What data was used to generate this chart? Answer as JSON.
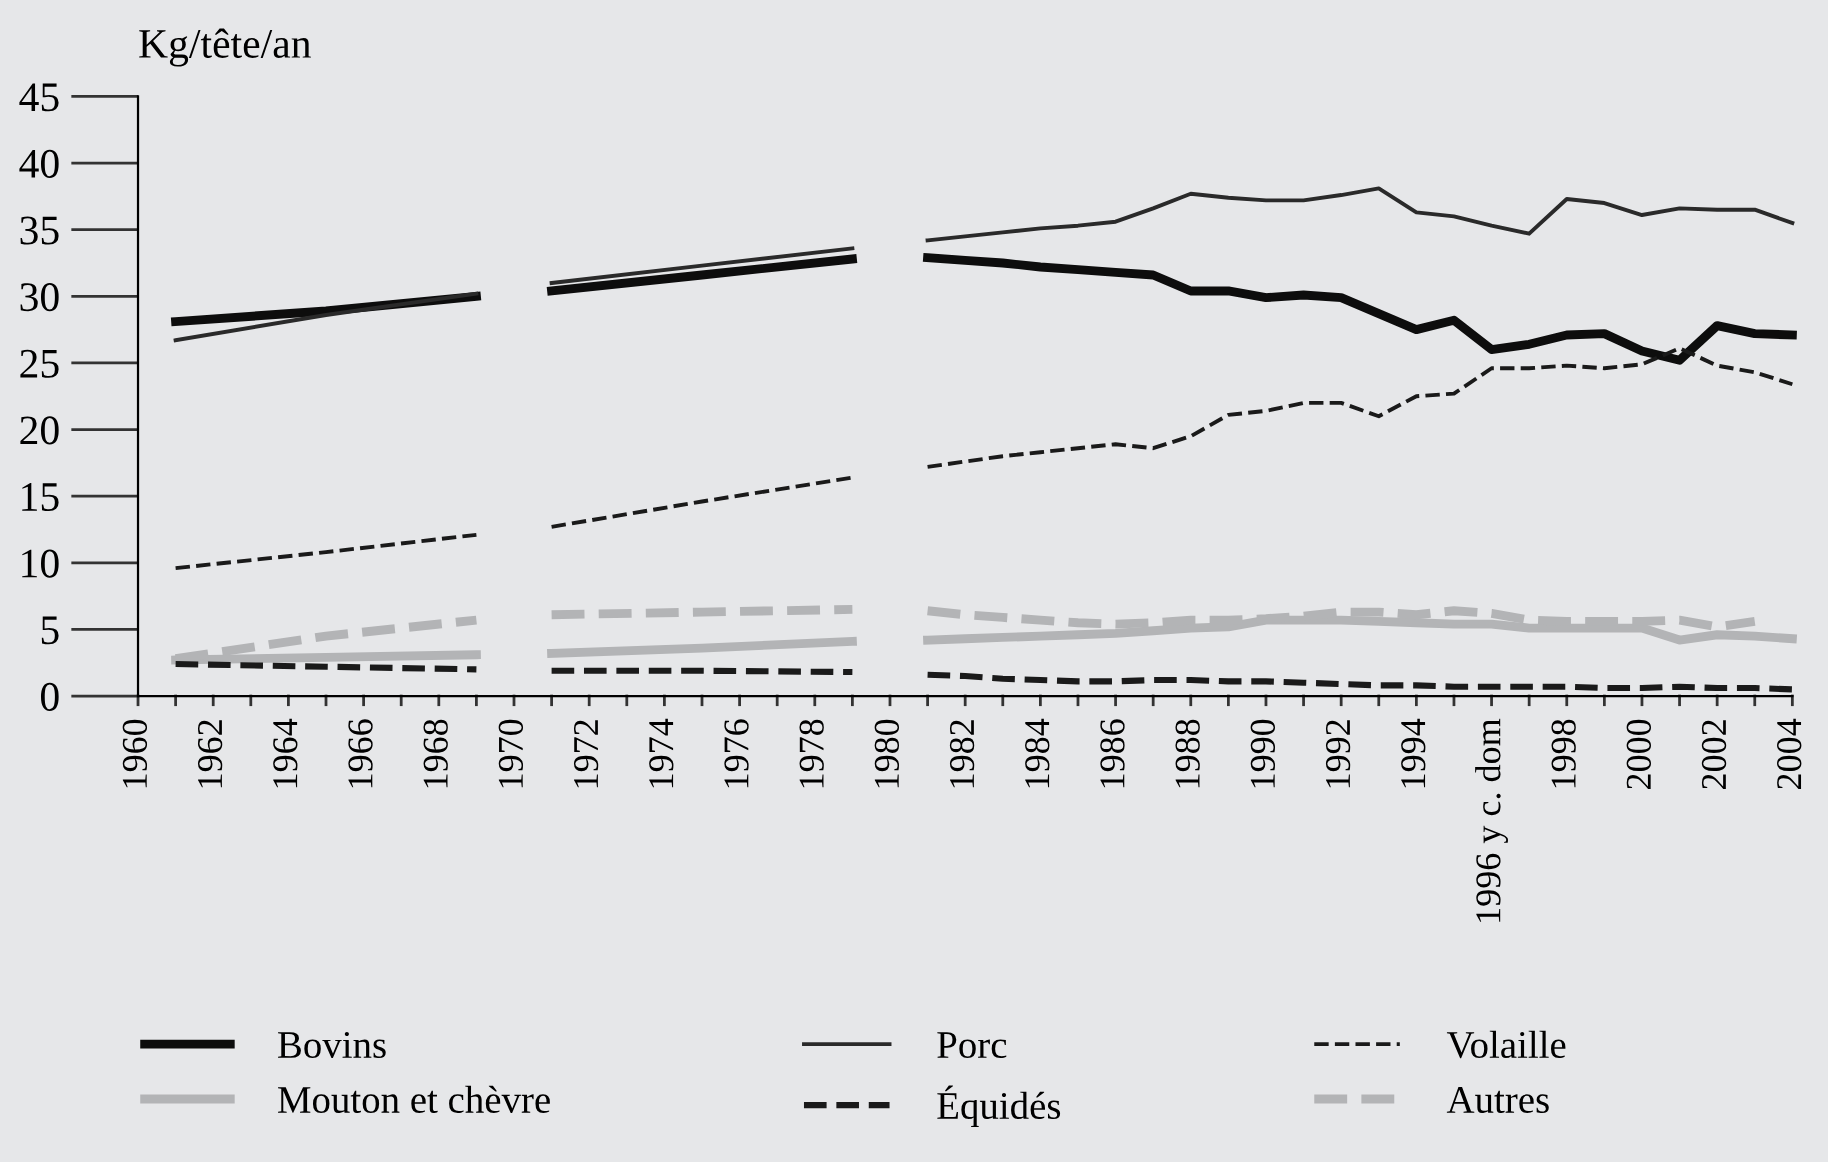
{
  "chart_data": {
    "type": "line",
    "ylabel": "Kg/tête/an",
    "xlim": [
      1960,
      2004
    ],
    "ylim": [
      0,
      45
    ],
    "yticks": [
      0,
      5,
      10,
      15,
      20,
      25,
      30,
      35,
      40,
      45
    ],
    "xticks": [
      1960,
      {
        "value": 1961,
        "label": null
      },
      1962,
      {
        "value": 1963,
        "label": null
      },
      1964,
      {
        "value": 1965,
        "label": null
      },
      1966,
      {
        "value": 1967,
        "label": null
      },
      1968,
      {
        "value": 1969,
        "label": null
      },
      1970,
      {
        "value": 1971,
        "label": null
      },
      1972,
      {
        "value": 1973,
        "label": null
      },
      1974,
      {
        "value": 1975,
        "label": null
      },
      1976,
      {
        "value": 1977,
        "label": null
      },
      1978,
      {
        "value": 1979,
        "label": null
      },
      1980,
      {
        "value": 1981,
        "label": null
      },
      1982,
      {
        "value": 1983,
        "label": null
      },
      1984,
      {
        "value": 1985,
        "label": null
      },
      1986,
      {
        "value": 1987,
        "label": null
      },
      1988,
      {
        "value": 1989,
        "label": null
      },
      1990,
      {
        "value": 1991,
        "label": null
      },
      1992,
      {
        "value": 1993,
        "label": null
      },
      1994,
      {
        "value": 1995,
        "label": null
      },
      {
        "value": 1996,
        "label": "1996 y c. dom"
      },
      {
        "value": 1997,
        "label": null
      },
      1998,
      {
        "value": 1999,
        "label": null
      },
      2000,
      {
        "value": 2001,
        "label": null
      },
      2002,
      {
        "value": 2003,
        "label": null
      },
      2004
    ],
    "x": [
      1961,
      1965,
      1969,
      1970,
      1971,
      1975,
      1979,
      1980,
      1981,
      1982,
      1983,
      1984,
      1985,
      1986,
      1987,
      1988,
      1989,
      1990,
      1991,
      1992,
      1993,
      1994,
      1995,
      1996,
      1997,
      1998,
      1999,
      2000,
      2001,
      2002,
      2003,
      2004
    ],
    "grid": false,
    "legend": "bottom",
    "marker": "none",
    "series": [
      {
        "name": "Bovins",
        "color": "#0d0d0d",
        "line_style": "solid",
        "values": [
          28.1,
          28.9,
          30.0,
          null,
          30.4,
          31.6,
          32.8,
          null,
          32.9,
          32.7,
          32.5,
          32.2,
          32.0,
          31.8,
          31.6,
          30.4,
          30.4,
          29.9,
          30.1,
          29.9,
          28.7,
          27.5,
          28.2,
          26.0,
          26.4,
          27.1,
          27.2,
          25.9,
          25.2,
          27.8,
          27.2,
          27.1
        ]
      },
      {
        "name": "Porc",
        "color": "#2a2a2a",
        "line_style": "solid",
        "values": [
          26.7,
          28.6,
          30.2,
          null,
          31.0,
          32.3,
          33.6,
          null,
          34.2,
          34.5,
          34.8,
          35.1,
          35.3,
          35.6,
          36.6,
          37.7,
          37.4,
          37.2,
          37.2,
          37.6,
          38.1,
          36.3,
          36.0,
          35.3,
          34.7,
          37.3,
          37.0,
          36.1,
          36.6,
          36.5,
          36.5,
          35.5
        ]
      },
      {
        "name": "Volaille",
        "color": "#1a1a1a",
        "line_style": "dashed",
        "values": [
          9.6,
          10.8,
          12.1,
          null,
          12.7,
          14.6,
          16.4,
          null,
          17.2,
          17.6,
          18.0,
          18.3,
          18.6,
          18.9,
          18.6,
          19.5,
          21.1,
          21.4,
          22.0,
          22.0,
          21.0,
          22.5,
          22.7,
          24.6,
          24.6,
          24.8,
          24.6,
          24.9,
          26.1,
          24.8,
          24.3,
          23.4
        ]
      },
      {
        "name": "Mouton et chèvre",
        "color": "#b3b4b6",
        "line_style": "solid",
        "values": [
          2.7,
          2.9,
          3.1,
          null,
          3.2,
          3.6,
          4.1,
          null,
          4.2,
          4.3,
          4.4,
          4.5,
          4.6,
          4.7,
          4.9,
          5.1,
          5.2,
          5.7,
          5.7,
          5.7,
          5.6,
          5.5,
          5.4,
          5.4,
          5.1,
          5.1,
          5.1,
          5.1,
          4.2,
          4.6,
          4.5,
          4.3
        ]
      },
      {
        "name": "Équidés",
        "color": "#1a1a1a",
        "line_style": "dashed",
        "values": [
          2.4,
          2.2,
          2.0,
          null,
          1.9,
          1.9,
          1.8,
          null,
          1.6,
          1.5,
          1.3,
          1.2,
          1.1,
          1.1,
          1.2,
          1.2,
          1.1,
          1.1,
          1.0,
          0.9,
          0.8,
          0.8,
          0.7,
          0.7,
          0.7,
          0.7,
          0.6,
          0.6,
          0.7,
          0.6,
          0.6,
          0.5
        ]
      },
      {
        "name": "Autres",
        "color": "#b3b4b6",
        "line_style": "dashed",
        "values": [
          2.8,
          4.5,
          5.7,
          null,
          6.1,
          6.3,
          6.5,
          null,
          6.4,
          6.1,
          5.9,
          5.7,
          5.5,
          5.4,
          5.5,
          5.7,
          5.7,
          5.8,
          6.0,
          6.3,
          6.3,
          6.1,
          6.4,
          6.2,
          5.7,
          5.6,
          5.6,
          5.6,
          5.7,
          5.2,
          5.6,
          null
        ]
      }
    ]
  }
}
